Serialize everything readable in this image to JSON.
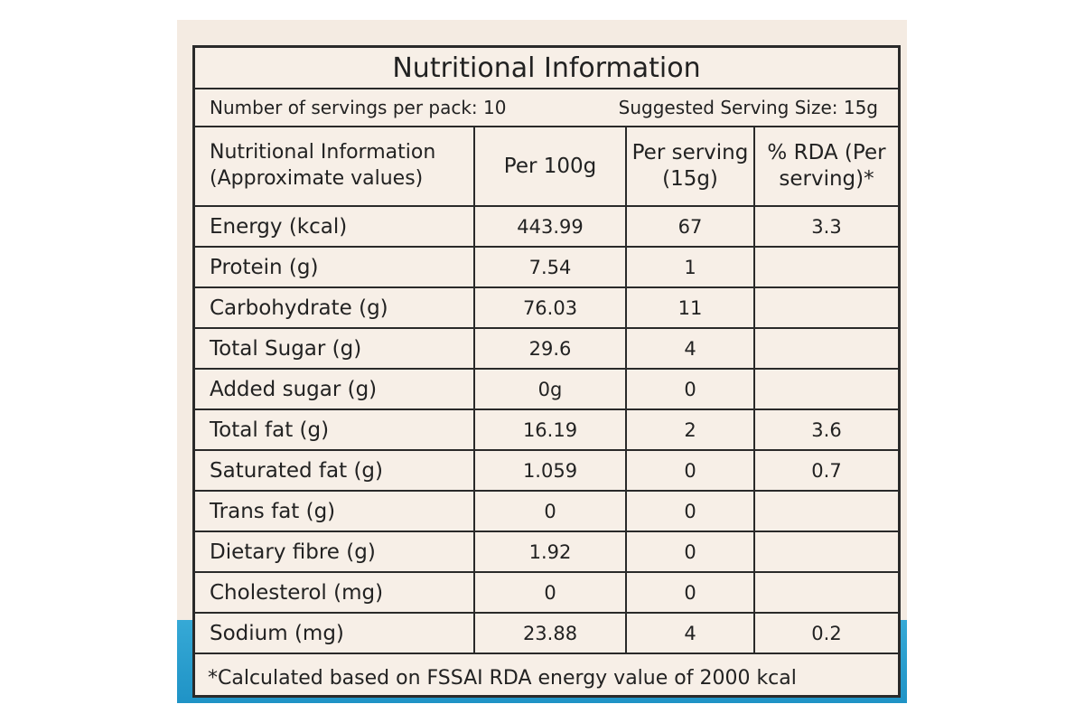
{
  "panel": {
    "title": "Nutritional Information",
    "servings_per_pack": "Number of servings per pack: 10",
    "serving_size": "Suggested Serving Size: 15g"
  },
  "table": {
    "headers": [
      "Nutritional Information (Approximate values)",
      "Per 100g",
      "Per serving (15g)",
      "% RDA (Per serving)*"
    ],
    "rows": [
      {
        "name": "Energy (kcal)",
        "per100": "443.99",
        "perServing": "67",
        "rda": "3.3"
      },
      {
        "name": "Protein (g)",
        "per100": "7.54",
        "perServing": "1",
        "rda": ""
      },
      {
        "name": "Carbohydrate (g)",
        "per100": "76.03",
        "perServing": "11",
        "rda": ""
      },
      {
        "name": "Total Sugar (g)",
        "per100": "29.6",
        "perServing": "4",
        "rda": ""
      },
      {
        "name": "Added sugar (g)",
        "per100": "0g",
        "perServing": "0",
        "rda": ""
      },
      {
        "name": "Total fat (g)",
        "per100": "16.19",
        "perServing": "2",
        "rda": "3.6"
      },
      {
        "name": "Saturated fat (g)",
        "per100": "1.059",
        "perServing": "0",
        "rda": "0.7"
      },
      {
        "name": "Trans fat (g)",
        "per100": "0",
        "perServing": "0",
        "rda": ""
      },
      {
        "name": "Dietary fibre (g)",
        "per100": "1.92",
        "perServing": "0",
        "rda": ""
      },
      {
        "name": "Cholesterol (mg)",
        "per100": "0",
        "perServing": "0",
        "rda": ""
      },
      {
        "name": "Sodium (mg)",
        "per100": "23.88",
        "perServing": "4",
        "rda": "0.2"
      }
    ]
  },
  "footnote": "*Calculated based on FSSAI RDA energy value of 2000 kcal",
  "colors": {
    "background": "#f4ebe2",
    "ink": "#222222",
    "band": "#1f93c6"
  }
}
